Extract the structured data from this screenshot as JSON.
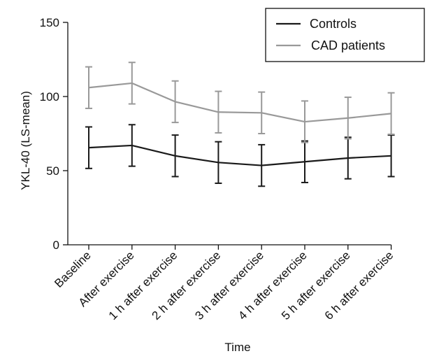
{
  "chart_data": {
    "type": "line",
    "title": "",
    "xlabel": "Time",
    "ylabel": "YKL-40 (LS-mean)",
    "ylim": [
      0,
      150
    ],
    "yticks": [
      0,
      50,
      100,
      150
    ],
    "grid": false,
    "legend_position": "top-right",
    "categories": [
      "Baseline",
      "After exercise",
      "1 h after exercise",
      "2 h after exercise",
      "3 h after exercise",
      "4 h after exercise",
      "5 h after exercise",
      "6 h after exercise"
    ],
    "series": [
      {
        "name": "Controls",
        "color": "#1a1a1a",
        "values": [
          65.5,
          67,
          60,
          55.5,
          53.5,
          56,
          58.5,
          60
        ],
        "error_low": [
          51.5,
          53,
          46,
          41.5,
          39.5,
          42,
          44.5,
          46
        ],
        "error_high": [
          79.5,
          81,
          74,
          69.5,
          67.5,
          70,
          72.5,
          74
        ]
      },
      {
        "name": "CAD patients",
        "color": "#999999",
        "values": [
          106,
          109,
          96.5,
          89.5,
          89,
          83,
          85.5,
          88.5
        ],
        "error_low": [
          92,
          95,
          82.5,
          75.5,
          75,
          69,
          71.5,
          74.5
        ],
        "error_high": [
          120,
          123,
          110.5,
          103.5,
          103,
          97,
          99.5,
          102.5
        ]
      }
    ]
  }
}
